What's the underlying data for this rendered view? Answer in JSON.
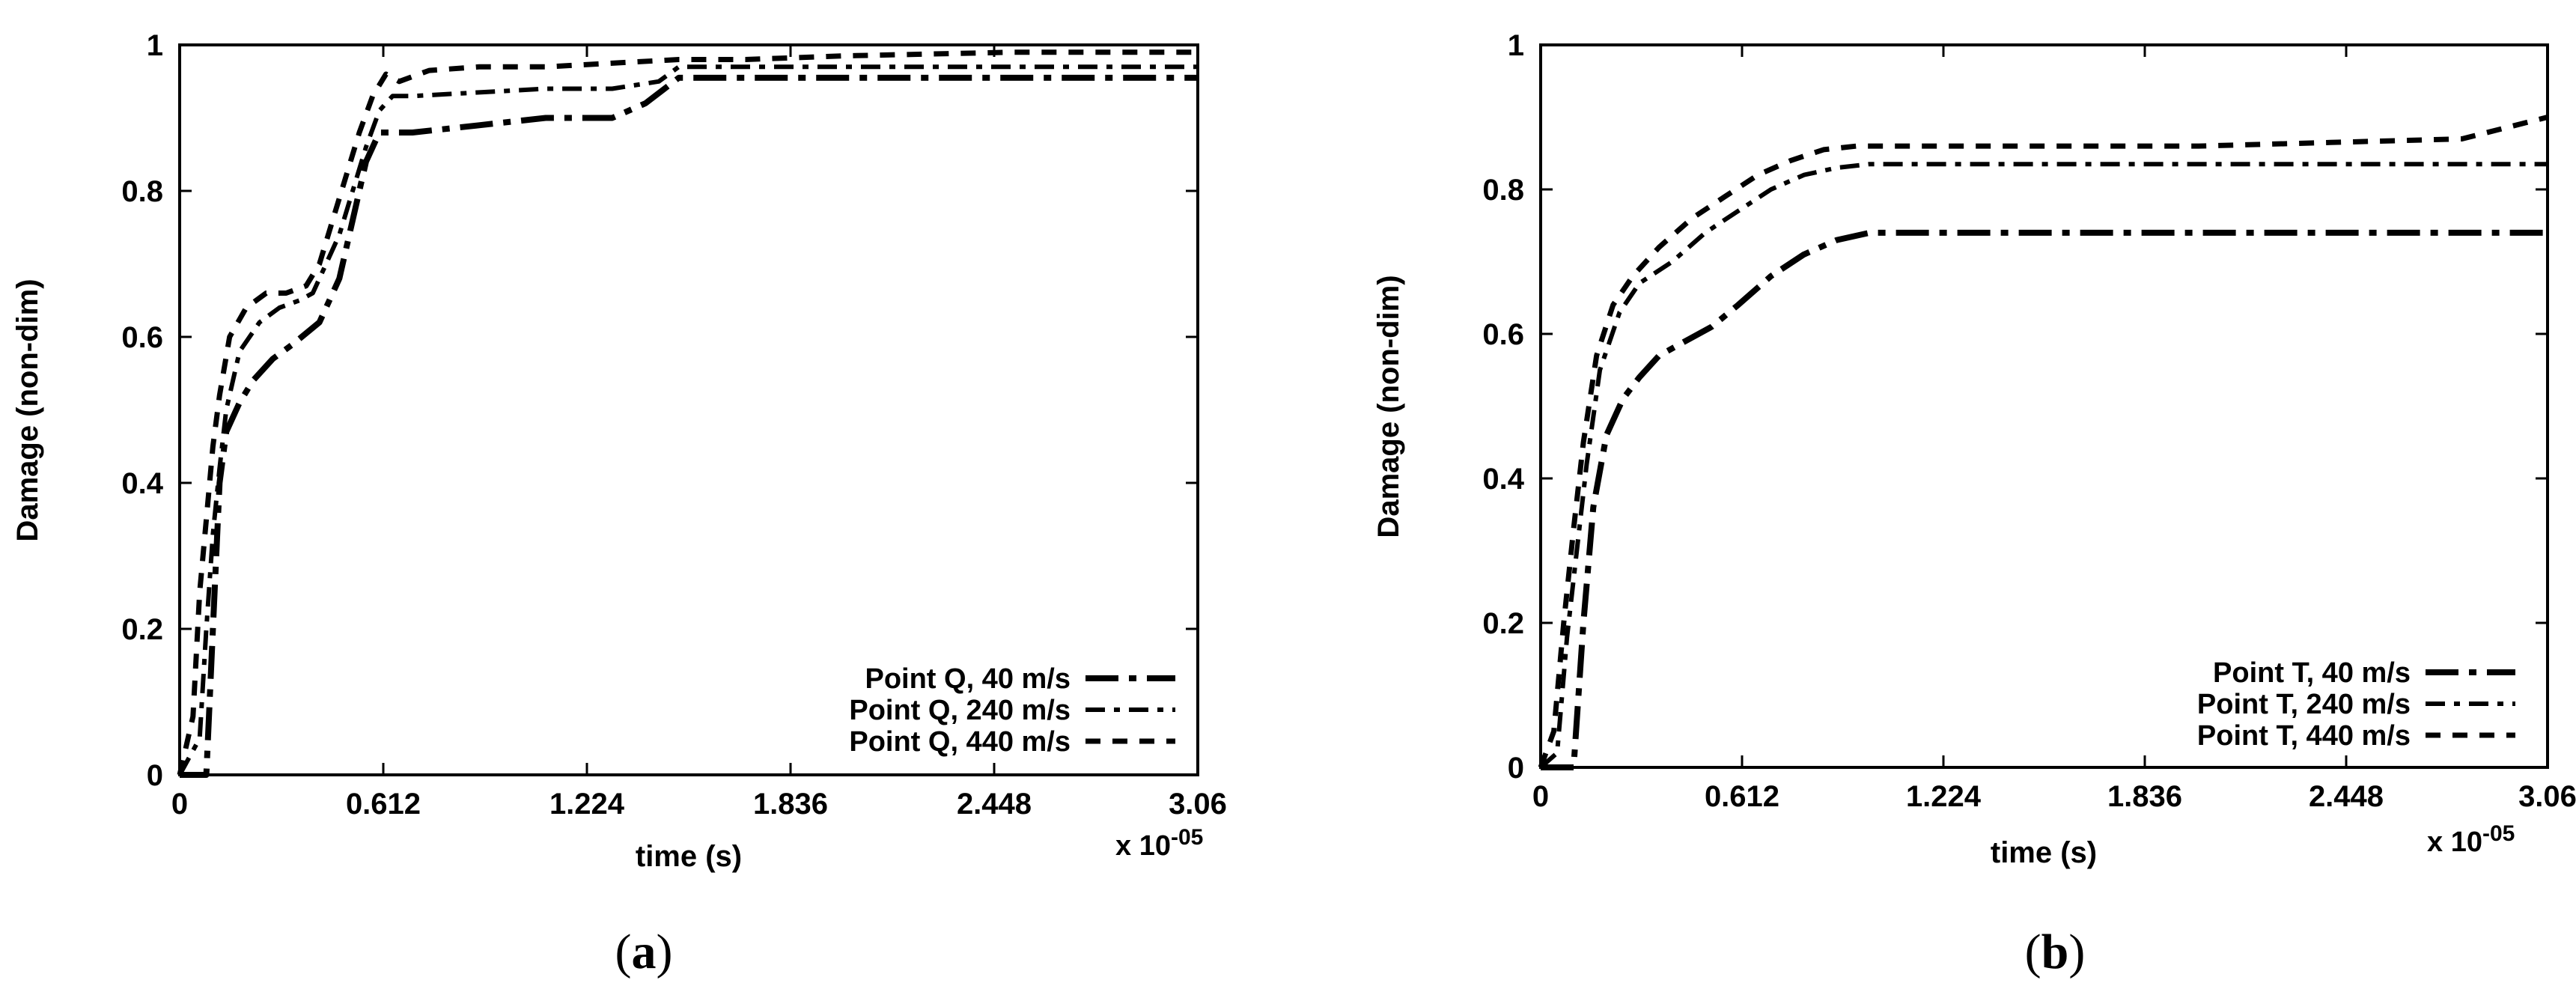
{
  "chart_data": [
    {
      "type": "line",
      "panel_label": "a",
      "xlabel": "time (s)",
      "ylabel": "Damage (non-dim)",
      "x_multiplier": "x 10",
      "x_multiplier_exp": "-05",
      "xlim": [
        0,
        3.06
      ],
      "ylim": [
        0,
        1
      ],
      "x_ticks": [
        "0",
        "0.612",
        "1.224",
        "1.836",
        "2.448",
        "3.06"
      ],
      "y_ticks": [
        "0",
        "0.2",
        "0.4",
        "0.6",
        "0.8",
        "1"
      ],
      "grid": false,
      "legend_position": "bottom-right",
      "series": [
        {
          "name": "Point Q, 40 m/s",
          "style": "dash-dot-long",
          "x": [
            0,
            0.08,
            0.1,
            0.12,
            0.14,
            0.18,
            0.22,
            0.28,
            0.34,
            0.42,
            0.48,
            0.52,
            0.56,
            0.6,
            0.64,
            0.7,
            0.9,
            1.1,
            1.3,
            1.4,
            1.5,
            1.6,
            1.8,
            2.2,
            2.6,
            3.06
          ],
          "y": [
            0,
            0,
            0.2,
            0.4,
            0.47,
            0.51,
            0.54,
            0.57,
            0.59,
            0.62,
            0.68,
            0.76,
            0.84,
            0.88,
            0.88,
            0.88,
            0.89,
            0.9,
            0.9,
            0.92,
            0.955,
            0.955,
            0.955,
            0.955,
            0.955,
            0.955
          ]
        },
        {
          "name": "Point Q, 240 m/s",
          "style": "dash-dot",
          "x": [
            0,
            0.06,
            0.08,
            0.1,
            0.12,
            0.14,
            0.18,
            0.24,
            0.3,
            0.36,
            0.4,
            0.44,
            0.48,
            0.52,
            0.56,
            0.6,
            0.64,
            0.7,
            0.9,
            1.1,
            1.3,
            1.44,
            1.5,
            1.7,
            2.0,
            2.4,
            3.06
          ],
          "y": [
            0,
            0.05,
            0.2,
            0.33,
            0.42,
            0.5,
            0.58,
            0.62,
            0.64,
            0.65,
            0.66,
            0.7,
            0.74,
            0.8,
            0.86,
            0.91,
            0.93,
            0.93,
            0.935,
            0.94,
            0.94,
            0.95,
            0.97,
            0.97,
            0.97,
            0.97,
            0.97
          ]
        },
        {
          "name": "Point Q, 440 m/s",
          "style": "dashed",
          "x": [
            0,
            0.04,
            0.06,
            0.08,
            0.1,
            0.12,
            0.15,
            0.2,
            0.26,
            0.32,
            0.38,
            0.42,
            0.46,
            0.5,
            0.54,
            0.58,
            0.62,
            0.66,
            0.75,
            0.9,
            1.1,
            1.3,
            1.5,
            1.7,
            2.0,
            2.5,
            3.06
          ],
          "y": [
            0,
            0.08,
            0.25,
            0.35,
            0.45,
            0.52,
            0.6,
            0.64,
            0.66,
            0.66,
            0.67,
            0.7,
            0.76,
            0.82,
            0.88,
            0.93,
            0.96,
            0.95,
            0.965,
            0.97,
            0.97,
            0.975,
            0.98,
            0.98,
            0.985,
            0.99,
            0.99
          ]
        }
      ]
    },
    {
      "type": "line",
      "panel_label": "b",
      "xlabel": "time (s)",
      "ylabel": "Damage (non-dim)",
      "x_multiplier": "x 10",
      "x_multiplier_exp": "-05",
      "xlim": [
        0,
        3.06
      ],
      "ylim": [
        0,
        1
      ],
      "x_ticks": [
        "0",
        "0.612",
        "1.224",
        "1.836",
        "2.448",
        "3.06"
      ],
      "y_ticks": [
        "0",
        "0.2",
        "0.4",
        "0.6",
        "0.8",
        "1"
      ],
      "grid": false,
      "legend_position": "bottom-right",
      "series": [
        {
          "name": "Point T, 40 m/s",
          "style": "dash-dot-long",
          "x": [
            0,
            0.1,
            0.13,
            0.16,
            0.2,
            0.25,
            0.3,
            0.36,
            0.44,
            0.52,
            0.6,
            0.7,
            0.8,
            0.9,
            1.0,
            1.2,
            1.6,
            2.0,
            2.5,
            3.06
          ],
          "y": [
            0,
            0,
            0.2,
            0.36,
            0.46,
            0.51,
            0.54,
            0.57,
            0.59,
            0.61,
            0.64,
            0.68,
            0.71,
            0.73,
            0.74,
            0.74,
            0.74,
            0.74,
            0.74,
            0.74
          ],
          "note_line_width": "bold"
        },
        {
          "name": "Point T, 240 m/s",
          "style": "dash-dot",
          "x": [
            0,
            0.05,
            0.08,
            0.11,
            0.14,
            0.18,
            0.24,
            0.3,
            0.4,
            0.5,
            0.6,
            0.7,
            0.8,
            0.9,
            1.0,
            1.2,
            1.6,
            2.0,
            2.5,
            3.06
          ],
          "y": [
            0,
            0.02,
            0.18,
            0.3,
            0.42,
            0.55,
            0.63,
            0.67,
            0.7,
            0.74,
            0.77,
            0.8,
            0.82,
            0.83,
            0.835,
            0.835,
            0.835,
            0.835,
            0.835,
            0.835
          ]
        },
        {
          "name": "Point T, 440 m/s",
          "style": "dashed",
          "x": [
            0,
            0.04,
            0.07,
            0.1,
            0.13,
            0.17,
            0.22,
            0.28,
            0.36,
            0.46,
            0.56,
            0.66,
            0.76,
            0.86,
            0.96,
            1.2,
            1.6,
            2.0,
            2.4,
            2.8,
            3.06
          ],
          "y": [
            0,
            0.05,
            0.2,
            0.33,
            0.45,
            0.57,
            0.64,
            0.68,
            0.72,
            0.76,
            0.79,
            0.82,
            0.84,
            0.855,
            0.86,
            0.86,
            0.86,
            0.86,
            0.865,
            0.87,
            0.9
          ]
        }
      ]
    }
  ]
}
